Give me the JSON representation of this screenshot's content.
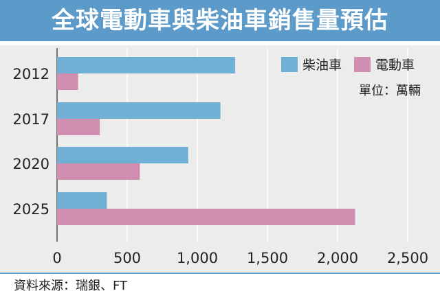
{
  "title": "全球電動車與柴油車銷售量預估",
  "source": "資料來源：瑞銀、FT",
  "colors": {
    "title_bg": "#5b9ac9",
    "panel_bg": "#ececec",
    "diesel": "#6fb0d4",
    "electric": "#d08fb0",
    "grid": "#ffffff",
    "text": "#222222"
  },
  "chart_data": {
    "type": "bar",
    "orientation": "horizontal",
    "unit_label": "單位：萬輛",
    "categories": [
      "2012",
      "2017",
      "2020",
      "2025"
    ],
    "series": [
      {
        "name": "柴油車",
        "color": "#6fb0d4",
        "values": [
          1270,
          1165,
          935,
          355
        ]
      },
      {
        "name": "電動車",
        "color": "#d08fb0",
        "values": [
          150,
          305,
          590,
          2125
        ]
      }
    ],
    "xlim": [
      0,
      2500
    ],
    "xticks": [
      0,
      500,
      1000,
      1500,
      2000,
      2500
    ],
    "xtick_labels": [
      "0",
      "500",
      "1,000",
      "1,500",
      "2,000",
      "2,500"
    ],
    "grid": true,
    "legend_position": "top-right"
  }
}
